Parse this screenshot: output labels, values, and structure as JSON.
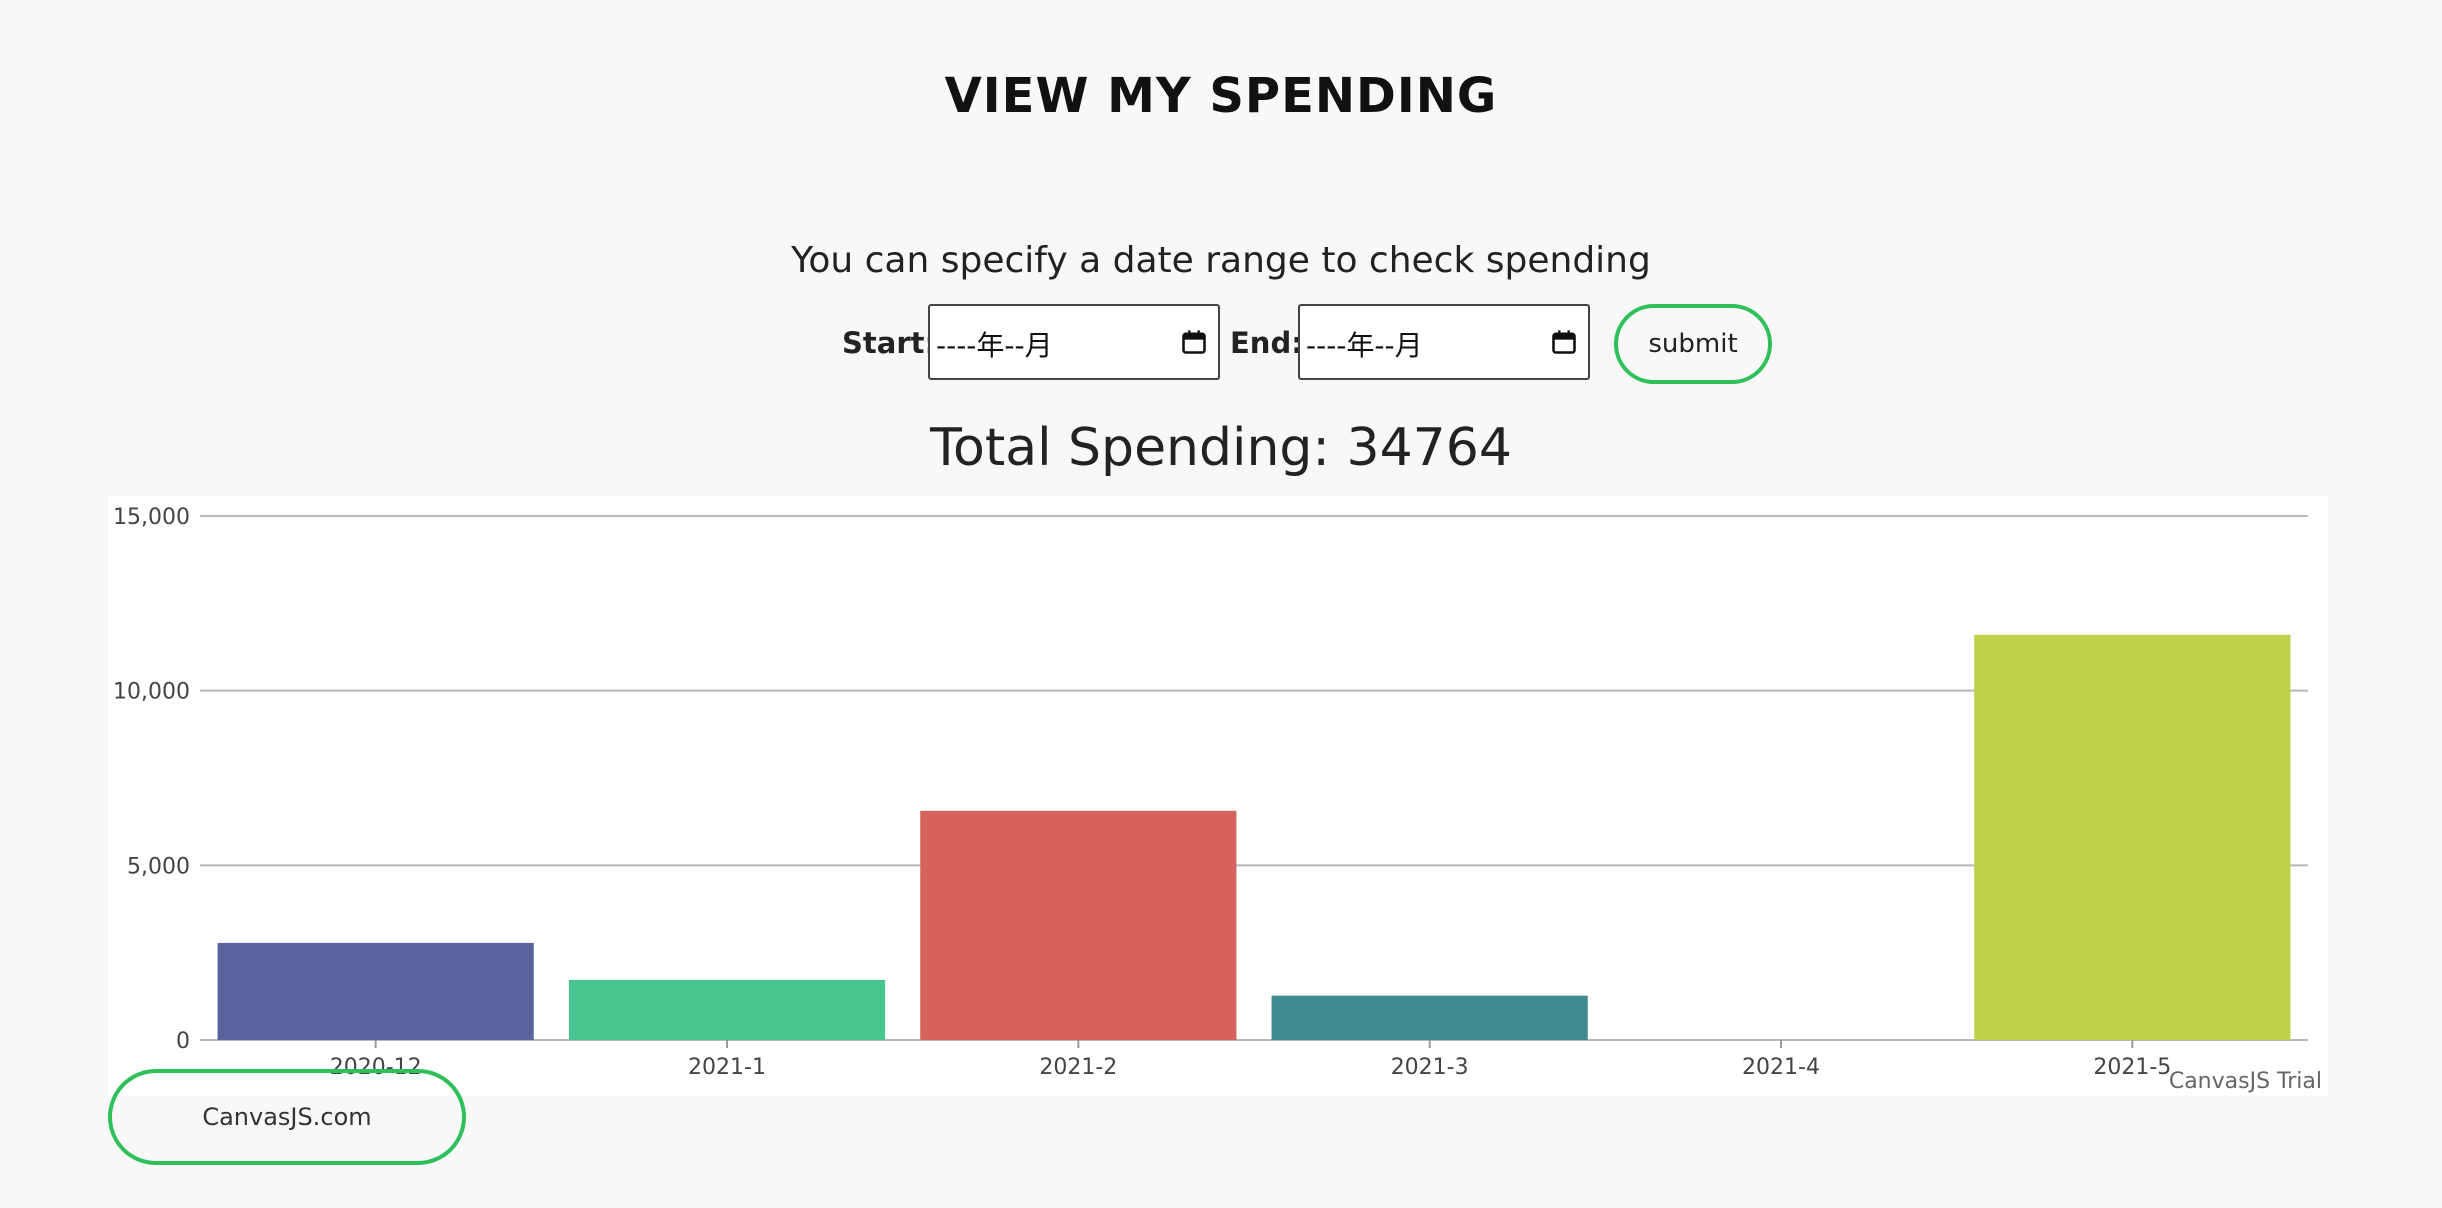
{
  "header": {
    "title": "VIEW MY SPENDING"
  },
  "form": {
    "instruction": "You can specify a date range to check spending",
    "start_label": "Start:",
    "start_value": "----年--月",
    "end_label": "End:",
    "end_value": "----年--月",
    "submit_label": "submit"
  },
  "summary": {
    "total_text": "Total Spending: 34764"
  },
  "chart_data": {
    "type": "bar",
    "categories": [
      "2020-12",
      "2021-1",
      "2021-2",
      "2021-3",
      "2021-4",
      "2021-5"
    ],
    "values": [
      2780,
      1720,
      6560,
      1270,
      0,
      11600
    ],
    "colors": [
      "#5b629e",
      "#47c68f",
      "#d6635d",
      "#3f8b8f",
      "#cccccc",
      "#bfd04a"
    ],
    "ylim": [
      0,
      15000
    ],
    "yticks": [
      0,
      5000,
      10000,
      15000
    ],
    "ytick_labels": [
      "0",
      "5,000",
      "10,000",
      "15,000"
    ],
    "grid": true,
    "title": "",
    "xlabel": "",
    "ylabel": ""
  },
  "footer": {
    "credit": "CanvasJS.com",
    "trial": "CanvasJS Trial"
  }
}
